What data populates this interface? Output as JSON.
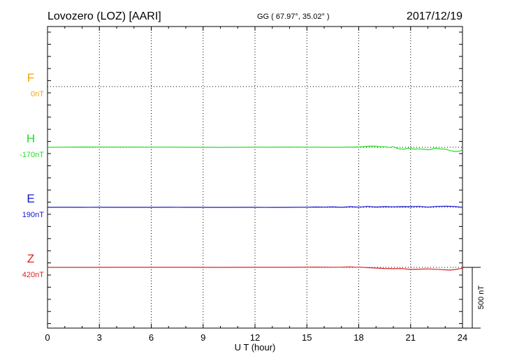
{
  "header": {
    "station": "Lovozero (LOZ)  [AARI]",
    "coords": "GG ( 67.97°,  35.02° )",
    "date": "2017/12/19"
  },
  "chart_data": {
    "type": "line",
    "xlabel": "U T (hour)",
    "xlim": [
      0,
      24
    ],
    "x_ticks": [
      "0",
      "3",
      "6",
      "9",
      "12",
      "15",
      "18",
      "21",
      "24"
    ],
    "grid": true,
    "scale_bar": {
      "label": "500 nT",
      "value_nT": 500
    },
    "series": [
      {
        "name": "F",
        "offset": "0nT",
        "color": "#f5a500",
        "level": 0,
        "x": [],
        "y": []
      },
      {
        "name": "H",
        "offset": "-170nT",
        "color": "#22dd22",
        "level": 1,
        "x": [
          0,
          1,
          2,
          3,
          4,
          5,
          6,
          7,
          8,
          9,
          10,
          11,
          12,
          13,
          14,
          15,
          16,
          16.5,
          17,
          17.5,
          18,
          18.3,
          18.6,
          18.9,
          19.2,
          19.5,
          19.8,
          20,
          20.3,
          20.6,
          20.9,
          21.2,
          21.5,
          21.8,
          22.1,
          22.4,
          22.7,
          23,
          23.3,
          23.6,
          23.9,
          24
        ],
        "y": [
          0,
          2,
          5,
          4,
          3,
          3,
          2,
          2,
          1,
          0,
          -1,
          0,
          2,
          1,
          4,
          2,
          1,
          0,
          1,
          3,
          5,
          10,
          18,
          20,
          10,
          8,
          -3,
          10,
          -25,
          -30,
          -15,
          -30,
          -25,
          -35,
          -40,
          -15,
          -28,
          -30,
          -55,
          -70,
          -60,
          -35
        ]
      },
      {
        "name": "E",
        "offset": "190nT",
        "color": "#1414cc",
        "level": 2,
        "x": [
          0,
          1,
          2,
          3,
          4,
          5,
          6,
          7,
          8,
          9,
          10,
          11,
          12,
          13,
          14,
          15,
          15.5,
          16,
          16.5,
          17,
          17.5,
          18,
          18.5,
          19,
          19.5,
          20,
          20.5,
          21,
          21.5,
          22,
          22.5,
          23,
          23.5,
          24
        ],
        "y": [
          0,
          1,
          0,
          1,
          0,
          0,
          0,
          1,
          0,
          0,
          -1,
          0,
          0,
          -1,
          0,
          2,
          6,
          3,
          7,
          0,
          10,
          3,
          15,
          5,
          12,
          8,
          12,
          10,
          15,
          3,
          15,
          18,
          15,
          0
        ]
      },
      {
        "name": "Z",
        "offset": "420nT",
        "color": "#dd2020",
        "level": 3,
        "x": [
          0,
          2,
          4,
          6,
          8,
          10,
          12,
          14,
          15,
          15.5,
          16,
          16.5,
          17,
          17.5,
          17.8,
          18.2,
          18.5,
          19,
          19.5,
          20,
          20.5,
          21,
          21.5,
          22,
          22.5,
          23,
          23.3,
          23.6,
          24
        ],
        "y": [
          0,
          0,
          1,
          1,
          1,
          0,
          1,
          1,
          3,
          5,
          3,
          2,
          4,
          8,
          3,
          2,
          -5,
          -12,
          -18,
          -22,
          -20,
          -35,
          -30,
          -25,
          -32,
          -40,
          -45,
          -35,
          -15
        ]
      }
    ]
  }
}
